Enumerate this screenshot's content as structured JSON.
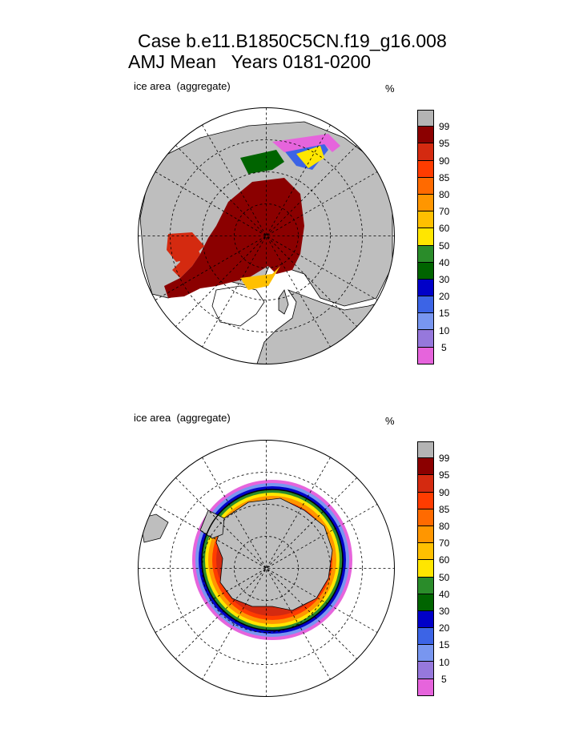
{
  "title": {
    "line1": "Case b.e11.B1850C5CN.f19_g16.008",
    "line2": "AMJ Mean   Years 0181-0200"
  },
  "panels": [
    {
      "id": "north",
      "label": "ice area  (aggregate)",
      "unit": "%"
    },
    {
      "id": "south",
      "label": "ice area  (aggregate)",
      "unit": "%"
    }
  ],
  "colorbar": {
    "levels": [
      "99",
      "95",
      "90",
      "85",
      "80",
      "70",
      "60",
      "50",
      "40",
      "30",
      "20",
      "15",
      "10",
      "5"
    ],
    "colors": [
      "#b4b4b4",
      "#8b0000",
      "#d42a10",
      "#ff3c00",
      "#ff6a00",
      "#ff9600",
      "#ffc000",
      "#ffe600",
      "#2a8c2a",
      "#006400",
      "#0000c8",
      "#3c64e6",
      "#7896f0",
      "#9678dc",
      "#e664dc"
    ]
  },
  "colors": {
    "land": "#bebebe",
    "ocean": "#ffffff",
    "grid": "#000000"
  }
}
